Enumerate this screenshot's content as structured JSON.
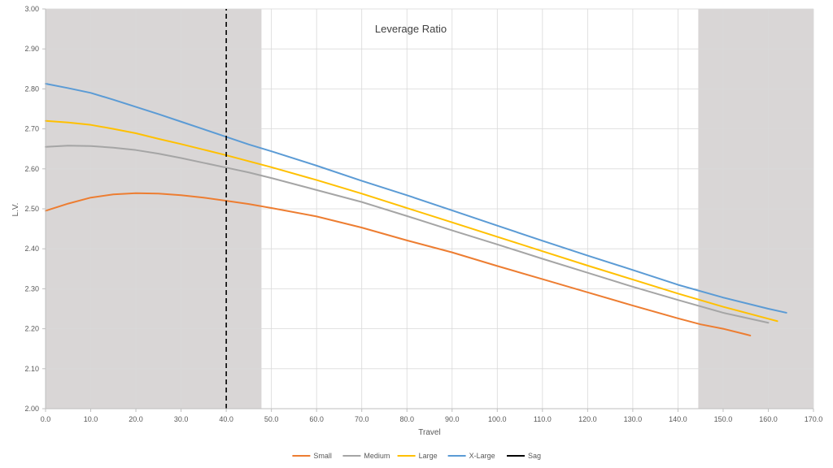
{
  "chart_data": {
    "type": "line",
    "title": "Leverage Ratio",
    "xlabel": "Travel",
    "ylabel": "L.V.",
    "xlim": [
      0,
      170
    ],
    "ylim": [
      2.0,
      3.0
    ],
    "x_ticks": [
      "0.0",
      "10.0",
      "20.0",
      "30.0",
      "40.0",
      "50.0",
      "60.0",
      "70.0",
      "80.0",
      "90.0",
      "100.0",
      "110.0",
      "120.0",
      "130.0",
      "140.0",
      "150.0",
      "160.0",
      "170.0"
    ],
    "y_ticks": [
      "2.00",
      "2.10",
      "2.20",
      "2.30",
      "2.40",
      "2.50",
      "2.60",
      "2.70",
      "2.80",
      "2.90",
      "3.00"
    ],
    "grid": true,
    "legend_position": "bottom",
    "shaded_regions": [
      {
        "x_start": 0,
        "x_end": 47.8,
        "color": "#d9d6d6"
      },
      {
        "x_start": 144.5,
        "x_end": 170,
        "color": "#d9d6d6"
      }
    ],
    "series": [
      {
        "name": "Small",
        "color": "#ed7d31",
        "x": [
          0,
          5,
          10,
          15,
          20,
          25,
          30,
          35,
          40,
          45,
          50,
          60,
          70,
          80,
          90,
          100,
          110,
          120,
          130,
          140,
          145,
          150,
          155,
          156
        ],
        "y": [
          2.495,
          2.513,
          2.528,
          2.536,
          2.539,
          2.538,
          2.534,
          2.528,
          2.52,
          2.512,
          2.502,
          2.481,
          2.453,
          2.421,
          2.391,
          2.357,
          2.324,
          2.291,
          2.258,
          2.226,
          2.211,
          2.2,
          2.186,
          2.183
        ]
      },
      {
        "name": "Medium",
        "color": "#a5a5a5",
        "x": [
          0,
          5,
          10,
          15,
          20,
          25,
          30,
          35,
          40,
          45,
          50,
          60,
          70,
          80,
          90,
          100,
          110,
          120,
          130,
          140,
          150,
          160
        ],
        "y": [
          2.655,
          2.658,
          2.657,
          2.653,
          2.647,
          2.638,
          2.627,
          2.615,
          2.603,
          2.591,
          2.577,
          2.547,
          2.517,
          2.482,
          2.446,
          2.411,
          2.375,
          2.34,
          2.305,
          2.272,
          2.24,
          2.215
        ]
      },
      {
        "name": "Large",
        "color": "#ffc000",
        "x": [
          0,
          5,
          10,
          15,
          20,
          25,
          30,
          35,
          40,
          45,
          50,
          60,
          70,
          80,
          90,
          100,
          110,
          120,
          130,
          140,
          150,
          160,
          162
        ],
        "y": [
          2.72,
          2.716,
          2.71,
          2.7,
          2.689,
          2.675,
          2.662,
          2.648,
          2.634,
          2.619,
          2.604,
          2.572,
          2.538,
          2.502,
          2.466,
          2.43,
          2.394,
          2.358,
          2.323,
          2.288,
          2.255,
          2.225,
          2.219
        ]
      },
      {
        "name": "X-Large",
        "color": "#5b9bd5",
        "x": [
          0,
          5,
          10,
          15,
          20,
          25,
          30,
          35,
          40,
          45,
          50,
          60,
          70,
          80,
          90,
          100,
          110,
          120,
          130,
          140,
          150,
          160,
          164
        ],
        "y": [
          2.813,
          2.802,
          2.79,
          2.773,
          2.755,
          2.737,
          2.718,
          2.699,
          2.68,
          2.661,
          2.644,
          2.608,
          2.57,
          2.534,
          2.496,
          2.458,
          2.42,
          2.383,
          2.347,
          2.31,
          2.278,
          2.25,
          2.24
        ]
      },
      {
        "name": "Sag",
        "color": "#000000",
        "dashed": true,
        "x": [
          40,
          40
        ],
        "y": [
          2.0,
          3.0
        ]
      }
    ]
  }
}
